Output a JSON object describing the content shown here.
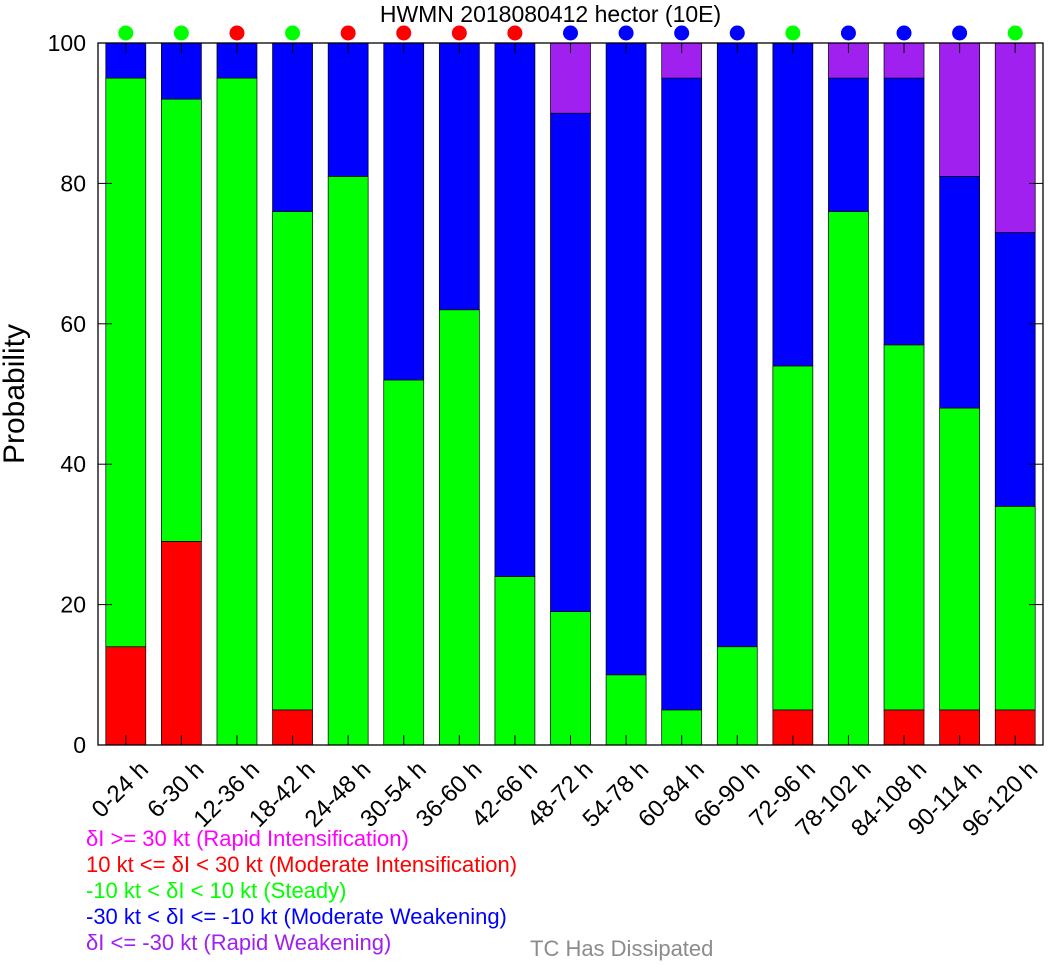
{
  "chart_data": {
    "type": "bar",
    "stacked": true,
    "title": "HWMN 2018080412 hector (10E)",
    "ylabel": "Probability",
    "xlabel": "",
    "ylim": [
      0,
      100
    ],
    "yticks": [
      0,
      20,
      40,
      60,
      80,
      100
    ],
    "categories": [
      "0-24 h",
      "6-30 h",
      "12-36 h",
      "18-42 h",
      "24-48 h",
      "30-54 h",
      "36-60 h",
      "42-66 h",
      "48-72 h",
      "54-78 h",
      "60-84 h",
      "66-90 h",
      "72-96 h",
      "78-102 h",
      "84-108 h",
      "90-114 h",
      "96-120 h"
    ],
    "series": [
      {
        "key": "rapid_intensification",
        "color": "#ff00ff",
        "values": [
          0,
          0,
          0,
          0,
          0,
          0,
          0,
          0,
          0,
          0,
          0,
          0,
          0,
          0,
          0,
          0,
          0
        ]
      },
      {
        "key": "moderate_intensification",
        "color": "#ff0000",
        "values": [
          14,
          29,
          0,
          5,
          0,
          0,
          0,
          0,
          0,
          0,
          0,
          0,
          5,
          0,
          5,
          5,
          5
        ]
      },
      {
        "key": "steady",
        "color": "#00ff00",
        "values": [
          81,
          63,
          95,
          71,
          81,
          52,
          62,
          24,
          19,
          10,
          5,
          14,
          49,
          76,
          52,
          43,
          29
        ]
      },
      {
        "key": "moderate_weakening",
        "color": "#0000ff",
        "values": [
          5,
          8,
          5,
          24,
          19,
          48,
          38,
          76,
          71,
          90,
          90,
          86,
          46,
          19,
          38,
          33,
          39
        ]
      },
      {
        "key": "rapid_weakening",
        "color": "#a020f0",
        "values": [
          0,
          0,
          0,
          0,
          0,
          0,
          0,
          0,
          10,
          0,
          5,
          0,
          0,
          5,
          5,
          19,
          27
        ]
      }
    ],
    "top_markers": [
      "steady",
      "steady",
      "moderate_intensification",
      "steady",
      "moderate_intensification",
      "moderate_intensification",
      "moderate_intensification",
      "moderate_intensification",
      "moderate_weakening",
      "moderate_weakening",
      "moderate_weakening",
      "moderate_weakening",
      "steady",
      "moderate_weakening",
      "moderate_weakening",
      "moderate_weakening",
      "steady"
    ],
    "legend": [
      {
        "text": "δI >= 30 kt (Rapid Intensification)",
        "color": "#ff00ff"
      },
      {
        "text": "10 kt <= δI < 30 kt (Moderate Intensification)",
        "color": "#ff0000"
      },
      {
        "text": "-10 kt < δI < 10 kt (Steady)",
        "color": "#00ff00"
      },
      {
        "text": "-30 kt < δI <= -10 kt (Moderate Weakening)",
        "color": "#0000ff"
      },
      {
        "text": "δI <= -30 kt (Rapid Weakening)",
        "color": "#a020f0"
      }
    ],
    "dissipated_label": {
      "text": "TC Has Dissipated",
      "color": "#8c8c8c"
    },
    "grid": false,
    "legend_position": "bottom-left"
  }
}
